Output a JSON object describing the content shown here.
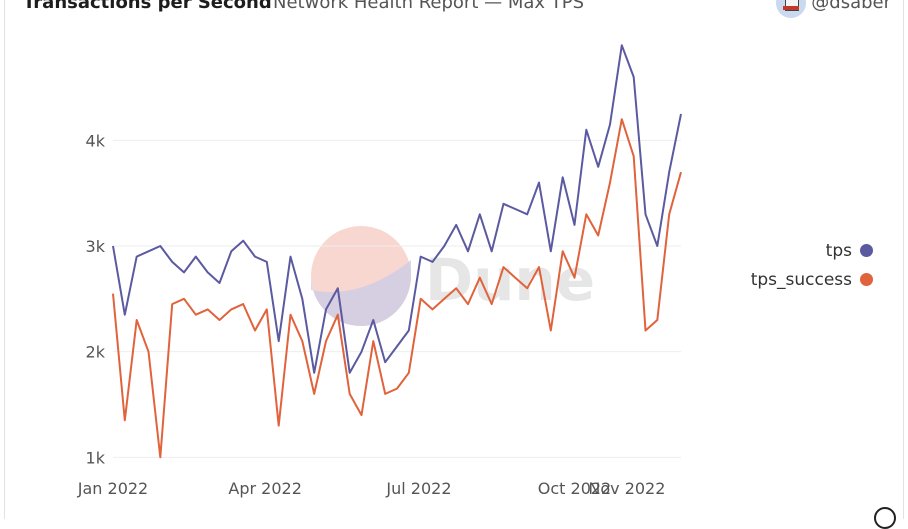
{
  "header": {
    "title": "Transactions per Second",
    "subtitle": "Network Health Report — Max TPS",
    "owner": "@dsaber"
  },
  "legend": [
    {
      "label": "tps",
      "color": "#5b5aa0"
    },
    {
      "label": "tps_success",
      "color": "#e0633c"
    }
  ],
  "watermark": "Dune",
  "chart_data": {
    "type": "line",
    "x_unit": "date",
    "x_ticks": [
      "Jan 2022",
      "Apr 2022",
      "Jul 2022",
      "Oct 2022",
      "Nov 2022"
    ],
    "y_ticks": [
      "1k",
      "2k",
      "3k",
      "4k"
    ],
    "y_tick_values": [
      1000,
      2000,
      3000,
      4000
    ],
    "grid": true,
    "legend_position": "right",
    "x": [
      "2022-01-01",
      "2022-01-08",
      "2022-01-15",
      "2022-01-22",
      "2022-01-29",
      "2022-02-05",
      "2022-02-12",
      "2022-02-19",
      "2022-02-26",
      "2022-03-05",
      "2022-03-12",
      "2022-03-19",
      "2022-03-26",
      "2022-04-02",
      "2022-04-09",
      "2022-04-16",
      "2022-04-23",
      "2022-04-30",
      "2022-05-07",
      "2022-05-14",
      "2022-05-21",
      "2022-05-28",
      "2022-06-04",
      "2022-06-11",
      "2022-06-18",
      "2022-06-25",
      "2022-07-02",
      "2022-07-09",
      "2022-07-16",
      "2022-07-23",
      "2022-07-30",
      "2022-08-06",
      "2022-08-13",
      "2022-08-20",
      "2022-08-27",
      "2022-09-03",
      "2022-09-10",
      "2022-09-17",
      "2022-09-24",
      "2022-10-01",
      "2022-10-08",
      "2022-10-15",
      "2022-10-22",
      "2022-10-29",
      "2022-11-05",
      "2022-11-12",
      "2022-11-19",
      "2022-11-26",
      "2022-12-03"
    ],
    "series": [
      {
        "name": "tps",
        "color": "#5b5aa0",
        "values": [
          3000,
          2350,
          2900,
          2950,
          3000,
          2850,
          2750,
          2900,
          2750,
          2650,
          2950,
          3050,
          2900,
          2850,
          2100,
          2900,
          2500,
          1800,
          2400,
          2600,
          1800,
          2000,
          2300,
          1900,
          2050,
          2200,
          2900,
          2850,
          3000,
          3200,
          2950,
          3300,
          2950,
          3400,
          3350,
          3300,
          3600,
          2950,
          3650,
          3200,
          4100,
          3750,
          4150,
          4900,
          4600,
          3300,
          3000,
          3700,
          4250
        ]
      },
      {
        "name": "tps_success",
        "color": "#e0633c",
        "values": [
          2550,
          1350,
          2300,
          2000,
          1000,
          2450,
          2500,
          2350,
          2400,
          2300,
          2400,
          2450,
          2200,
          2400,
          1300,
          2350,
          2100,
          1600,
          2100,
          2350,
          1600,
          1400,
          2100,
          1600,
          1650,
          1800,
          2500,
          2400,
          2500,
          2600,
          2450,
          2700,
          2450,
          2800,
          2700,
          2600,
          2800,
          2200,
          2950,
          2700,
          3300,
          3100,
          3600,
          4200,
          3850,
          2200,
          2300,
          3300,
          3700
        ]
      }
    ]
  }
}
